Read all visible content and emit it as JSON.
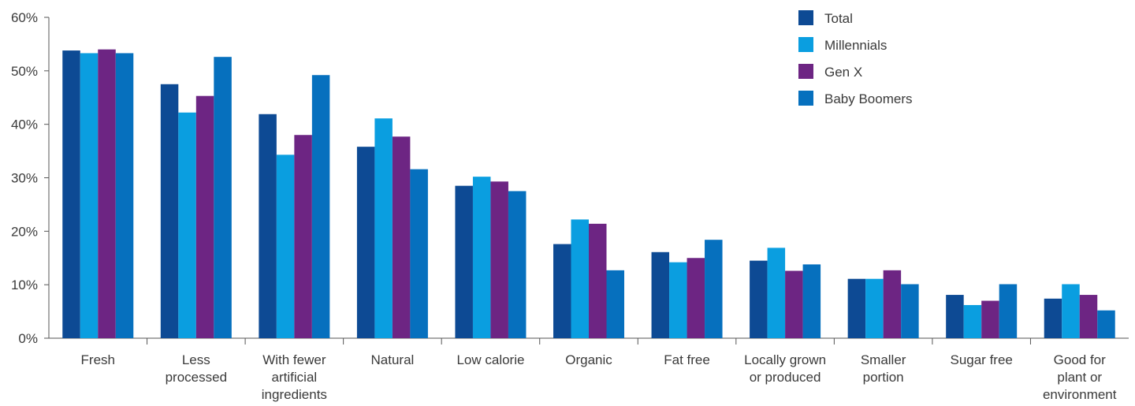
{
  "chart_data": {
    "type": "bar",
    "title": "",
    "xlabel": "",
    "ylabel": "",
    "ylim": [
      0,
      60
    ],
    "yticks": [
      0,
      10,
      20,
      30,
      40,
      50,
      60
    ],
    "y_tick_suffix": "%",
    "grid": false,
    "legend_position": "top-right",
    "categories": [
      "Fresh",
      "Less processed",
      "With fewer artificial ingredients",
      "Natural",
      "Low calorie",
      "Organic",
      "Fat free",
      "Locally grown or produced",
      "Smaller portion",
      "Sugar free",
      "Good for plant or environment"
    ],
    "category_lines": [
      [
        "Fresh"
      ],
      [
        "Less",
        "processed"
      ],
      [
        "With fewer",
        "artificial",
        "ingredients"
      ],
      [
        "Natural"
      ],
      [
        "Low calorie"
      ],
      [
        "Organic"
      ],
      [
        "Fat free"
      ],
      [
        "Locally grown",
        "or produced"
      ],
      [
        "Smaller",
        "portion"
      ],
      [
        "Sugar free"
      ],
      [
        "Good for",
        "plant or",
        "environment"
      ]
    ],
    "series": [
      {
        "name": "Total",
        "color": "#0d4a94",
        "values": [
          53.8,
          47.5,
          41.9,
          35.8,
          28.5,
          17.6,
          16.1,
          14.5,
          11.1,
          8.1,
          7.4
        ]
      },
      {
        "name": "Millennials",
        "color": "#0a9ee0",
        "values": [
          53.3,
          42.2,
          34.3,
          41.1,
          30.2,
          22.2,
          14.2,
          16.9,
          11.1,
          6.2,
          10.1
        ]
      },
      {
        "name": "Gen X",
        "color": "#6d2583",
        "values": [
          54.0,
          45.3,
          38.0,
          37.7,
          29.3,
          21.4,
          15.0,
          12.6,
          12.7,
          7.0,
          8.1
        ]
      },
      {
        "name": "Baby Boomers",
        "color": "#0670be",
        "values": [
          53.3,
          52.6,
          49.2,
          31.6,
          27.5,
          12.7,
          18.4,
          13.8,
          10.1,
          10.1,
          5.2
        ]
      }
    ]
  }
}
